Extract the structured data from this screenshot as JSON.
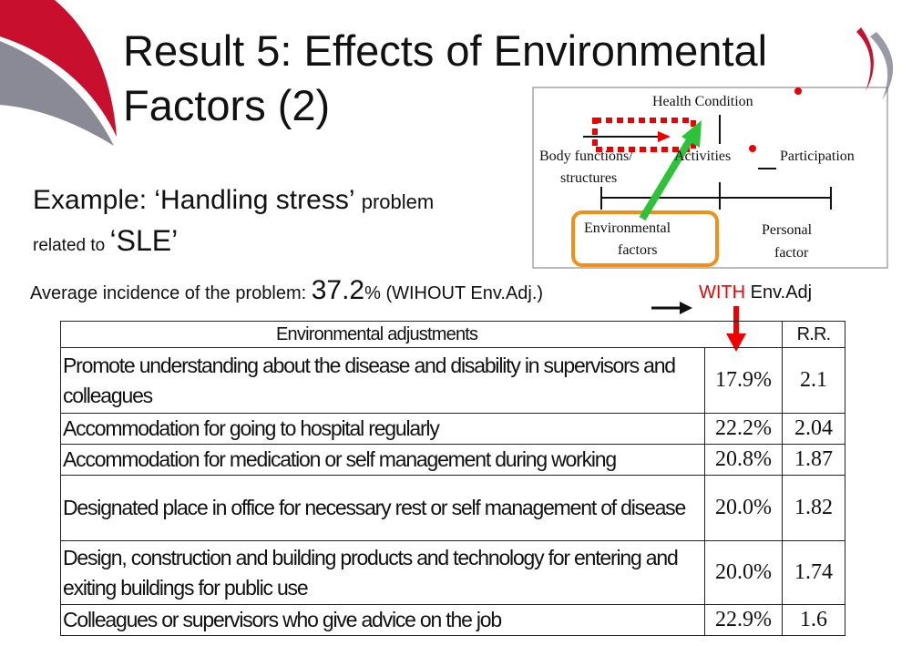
{
  "title_lines": [
    "Result 5: Effects of  Environmental",
    "Factors (2)"
  ],
  "example": {
    "main": "Example: ‘Handling stress’",
    "small": "problem",
    "related": "related to",
    "topic": "‘SLE’"
  },
  "incidence": {
    "label": "Average incidence of the problem:",
    "value": "37.2",
    "unit_without": "% (WIHOUT",
    "env_adj": "Env.Adj.)",
    "with": "WITH",
    "with_env": "Env.Adj"
  },
  "diagram": {
    "health": "Health Condition",
    "body": "Body functions/",
    "structures": "structures",
    "activities": "Activities",
    "participation": "Participation",
    "environmental": "Environmental",
    "factors": "factors",
    "personal": "Personal",
    "personal_factor": "factor"
  },
  "table": {
    "header": {
      "label": "Environmental adjustments",
      "rr": "R.R."
    },
    "rows": [
      [
        "Promote understanding about the disease and disability in supervisors and colleagues",
        "17.9%",
        "2.1"
      ],
      [
        "Accommodation for going to hospital regularly",
        "22.2%",
        "2.04"
      ],
      [
        "Accommodation for medication or self management during working",
        "20.8%",
        "1.87"
      ],
      [
        "Designated place in office for necessary rest or self management of disease",
        "20.0%",
        "1.82"
      ],
      [
        "Design, construction and building products and technology for entering and exiting buildings for public use",
        "20.0%",
        "1.74"
      ],
      [
        "Colleagues or supervisors who give advice on the job",
        "22.9%",
        "1.6"
      ]
    ]
  }
}
